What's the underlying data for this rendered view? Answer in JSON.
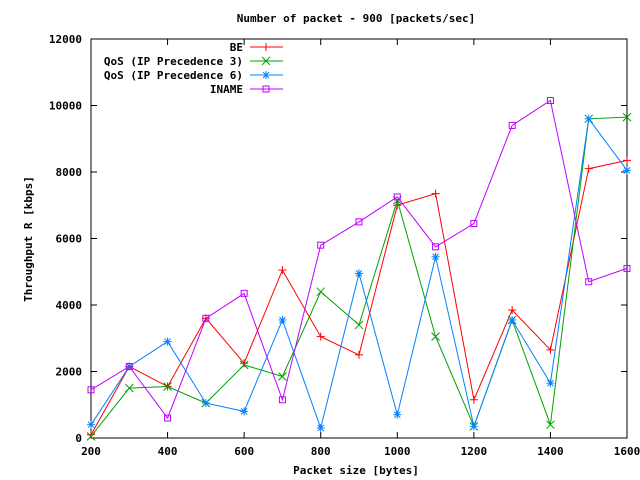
{
  "chart_data": {
    "type": "line",
    "title": "Number of packet - 900 [packets/sec]",
    "xlabel": "Packet size [bytes]",
    "ylabel": "Throughput R [kbps]",
    "xlim": [
      200,
      1600
    ],
    "ylim": [
      0,
      12000
    ],
    "x_ticks": [
      "200",
      "400",
      "600",
      "800",
      "1000",
      "1200",
      "1400",
      "1600"
    ],
    "y_ticks": [
      "0",
      "2000",
      "4000",
      "6000",
      "8000",
      "10000",
      "12000"
    ],
    "grid": false,
    "legend_position": "top-left",
    "series": [
      {
        "name": "BE",
        "color": "#ff0000",
        "marker": "plus",
        "x": [
          200,
          300,
          400,
          500,
          600,
          700,
          800,
          900,
          1000,
          1100,
          1200,
          1300,
          1400,
          1500,
          1600
        ],
        "y": [
          100,
          2150,
          1550,
          3600,
          2250,
          5050,
          3050,
          2500,
          7000,
          7350,
          1150,
          3850,
          2650,
          8100,
          8350
        ]
      },
      {
        "name": "QoS (IP Precedence 3)",
        "color": "#00a000",
        "marker": "x",
        "x": [
          200,
          300,
          400,
          500,
          600,
          700,
          800,
          900,
          1000,
          1100,
          1200,
          1300,
          1400,
          1500,
          1600
        ],
        "y": [
          50,
          1500,
          1550,
          1050,
          2200,
          1850,
          4400,
          3400,
          7150,
          3050,
          350,
          3550,
          400,
          9600,
          9650
        ]
      },
      {
        "name": "QoS (IP Precedence 6)",
        "color": "#0080ff",
        "marker": "star",
        "x": [
          200,
          300,
          400,
          500,
          600,
          700,
          800,
          900,
          1000,
          1100,
          1200,
          1300,
          1400,
          1500,
          1600
        ],
        "y": [
          400,
          2150,
          2900,
          1050,
          800,
          3550,
          300,
          4950,
          700,
          5450,
          350,
          3550,
          1650,
          9600,
          8050
        ]
      },
      {
        "name": "INAME",
        "color": "#c000ff",
        "marker": "box",
        "x": [
          200,
          300,
          400,
          500,
          600,
          700,
          800,
          900,
          1000,
          1100,
          1200,
          1300,
          1400,
          1500,
          1600
        ],
        "y": [
          1450,
          2150,
          600,
          3600,
          4350,
          1150,
          5800,
          6500,
          7250,
          5750,
          6450,
          9400,
          10150,
          4700,
          5100
        ]
      }
    ]
  }
}
